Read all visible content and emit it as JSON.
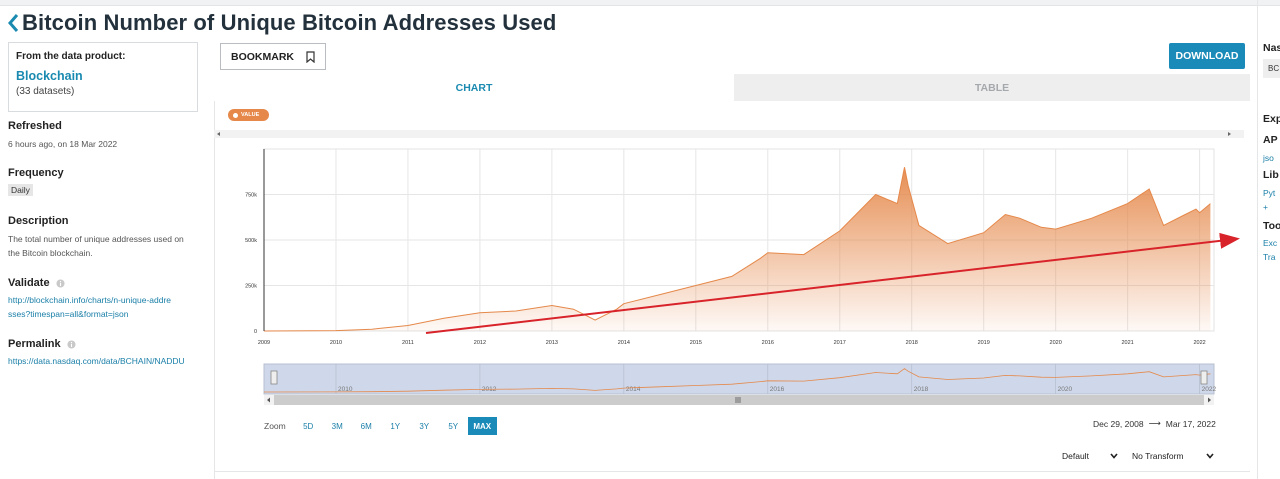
{
  "page": {
    "title": "Bitcoin Number of Unique Bitcoin Addresses Used"
  },
  "sidebar": {
    "product_label": "From the data product:",
    "product_name": "Blockchain",
    "product_count": "(33 datasets)",
    "refreshed_heading": "Refreshed",
    "refreshed_value": "6 hours ago, on 18 Mar 2022",
    "frequency_heading": "Frequency",
    "frequency_value": "Daily",
    "description_heading": "Description",
    "description_value": "The total number of unique addresses used on the Bitcoin blockchain.",
    "validate_heading": "Validate",
    "validate_link": "http://blockchain.info/charts/n-unique-addresses?timespan=all&format=json",
    "permalink_heading": "Permalink",
    "permalink_link": "https://data.nasdaq.com/data/BCHAIN/NADDU"
  },
  "toolbar": {
    "bookmark_label": "BOOKMARK",
    "download_label": "DOWNLOAD"
  },
  "tabs": {
    "chart": "CHART",
    "table": "TABLE"
  },
  "legend_pill": "VALUE",
  "zoom": {
    "label": "Zoom",
    "buttons": [
      "5D",
      "3M",
      "6M",
      "1Y",
      "3Y",
      "5Y",
      "MAX"
    ],
    "active": "MAX"
  },
  "range": {
    "from": "Dec 29, 2008",
    "to": "Mar 17, 2022"
  },
  "selects": {
    "frequency": "Default",
    "transform": "No Transform"
  },
  "right_panel": {
    "heading": "Nas",
    "code": "BC",
    "export_heading": "Exp",
    "api_heading": "AP",
    "api_link": "jso",
    "libs_heading": "Lib",
    "libs_link": "Pyt",
    "libs_more": "+",
    "tools_heading": "Too",
    "tools_link1": "Exc",
    "tools_link2": "Tra"
  },
  "colors": {
    "accent": "#1a8ab8",
    "series_line": "#e5884a",
    "annotation_arrow": "#d8232a"
  },
  "chart_data": {
    "type": "area",
    "series": [
      {
        "name": "VALUE",
        "x": [
          2009.0,
          2010.0,
          2010.5,
          2011.0,
          2011.5,
          2012.0,
          2012.5,
          2013.0,
          2013.3,
          2013.6,
          2013.9,
          2014.0,
          2014.5,
          2015.0,
          2015.5,
          2015.9,
          2016.0,
          2016.5,
          2017.0,
          2017.5,
          2017.8,
          2017.9,
          2017.95,
          2018.1,
          2018.5,
          2019.0,
          2019.3,
          2019.5,
          2019.8,
          2020.0,
          2020.5,
          2021.0,
          2021.3,
          2021.5,
          2021.8,
          2021.95,
          2022.0,
          2022.15
        ],
        "y": [
          0,
          2000,
          10000,
          30000,
          70000,
          100000,
          110000,
          140000,
          120000,
          60000,
          120000,
          150000,
          200000,
          250000,
          300000,
          400000,
          430000,
          420000,
          550000,
          750000,
          700000,
          900000,
          800000,
          580000,
          480000,
          540000,
          640000,
          620000,
          570000,
          560000,
          620000,
          700000,
          780000,
          580000,
          640000,
          670000,
          650000,
          700000
        ]
      }
    ],
    "x_ticks": [
      "2009",
      "2010",
      "2011",
      "2012",
      "2013",
      "2014",
      "2015",
      "2016",
      "2017",
      "2018",
      "2019",
      "2020",
      "2021",
      "2022"
    ],
    "y_ticks": [
      "0",
      "250k",
      "500k",
      "750k"
    ],
    "navigator_ticks": [
      "2010",
      "2012",
      "2014",
      "2016",
      "2018",
      "2020",
      "2022"
    ],
    "xlim": [
      2009.0,
      2022.2
    ],
    "ylim": [
      0,
      1000000
    ],
    "grid": true,
    "title": "",
    "xlabel": "",
    "ylabel": ""
  }
}
